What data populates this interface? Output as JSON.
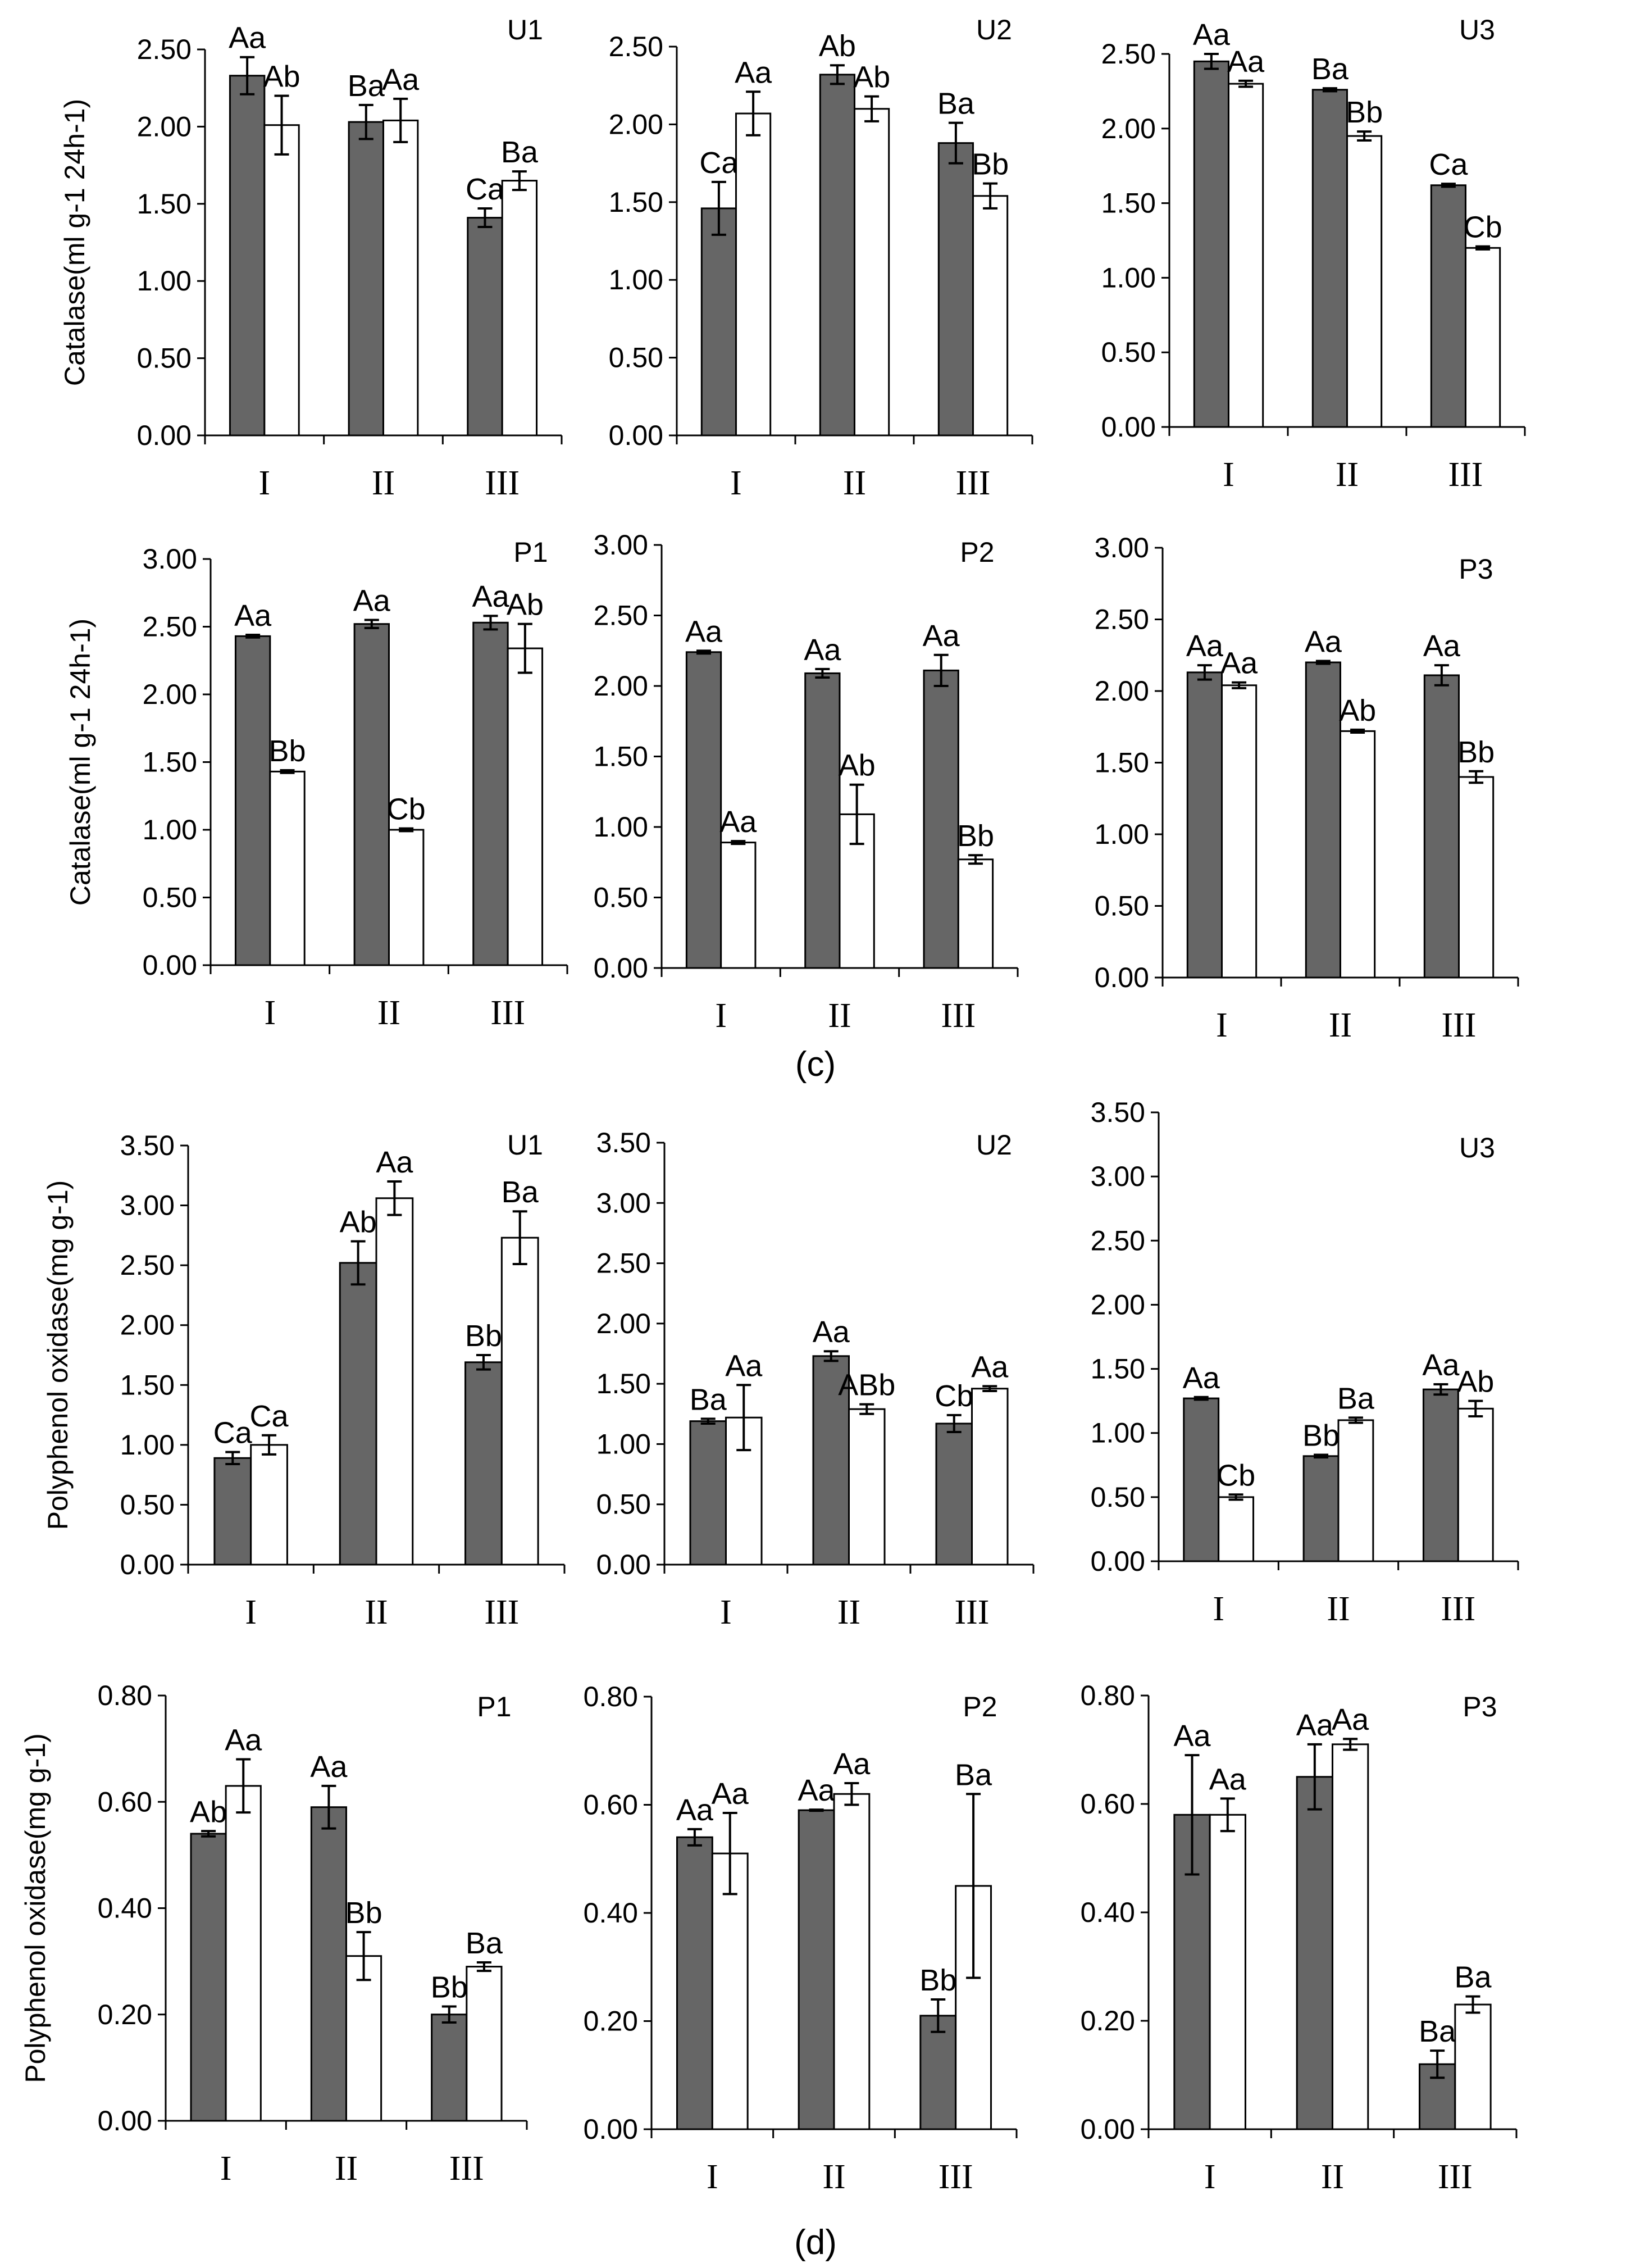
{
  "colors": {
    "treatment": "#666666",
    "control": "#ffffff",
    "axis": "#000000"
  },
  "section_labels": {
    "c": "(c)",
    "d": "(d)"
  },
  "chart_data": [
    {
      "id": "cat-u1",
      "type": "bar",
      "group": "c",
      "title": "U1",
      "ylabel": "Catalase(ml g-1 24h-1)",
      "ylim": [
        0,
        2.5
      ],
      "ystep": 0.5,
      "categories": [
        "I",
        "II",
        "III"
      ],
      "series": [
        {
          "name": "shaded",
          "values": [
            2.33,
            2.03,
            1.41
          ],
          "errors": [
            0.12,
            0.11,
            0.06
          ],
          "labels": [
            "Aa",
            "Ba",
            "Ca"
          ]
        },
        {
          "name": "open",
          "values": [
            2.01,
            2.04,
            1.65
          ],
          "errors": [
            0.19,
            0.14,
            0.06
          ],
          "labels": [
            "Ab",
            "Aa",
            "Ba"
          ]
        }
      ]
    },
    {
      "id": "cat-u2",
      "type": "bar",
      "group": "c",
      "title": "U2",
      "ylim": [
        0,
        2.5
      ],
      "ystep": 0.5,
      "categories": [
        "I",
        "II",
        "III"
      ],
      "series": [
        {
          "name": "shaded",
          "values": [
            1.46,
            2.32,
            1.88
          ],
          "errors": [
            0.17,
            0.06,
            0.13
          ],
          "labels": [
            "Ca",
            "Ab",
            "Ba"
          ]
        },
        {
          "name": "open",
          "values": [
            2.07,
            2.1,
            1.54
          ],
          "errors": [
            0.14,
            0.08,
            0.08
          ],
          "labels": [
            "Aa",
            "Ab",
            "Bb"
          ]
        }
      ]
    },
    {
      "id": "cat-u3",
      "type": "bar",
      "group": "c",
      "title": "U3",
      "ylim": [
        0,
        2.5
      ],
      "ystep": 0.5,
      "categories": [
        "I",
        "II",
        "III"
      ],
      "series": [
        {
          "name": "shaded",
          "values": [
            2.45,
            2.26,
            1.62
          ],
          "errors": [
            0.05,
            0.01,
            0.01
          ],
          "labels": [
            "Aa",
            "Ba",
            "Ca"
          ]
        },
        {
          "name": "open",
          "values": [
            2.3,
            1.95,
            1.2
          ],
          "errors": [
            0.02,
            0.03,
            0.01
          ],
          "labels": [
            "Aa",
            "Bb",
            "Cb"
          ]
        }
      ]
    },
    {
      "id": "cat-p1",
      "type": "bar",
      "group": "c",
      "title": "P1",
      "ylabel": "Catalase(ml g-1 24h-1)",
      "ylim": [
        0,
        3.0
      ],
      "ystep": 0.5,
      "categories": [
        "I",
        "II",
        "III"
      ],
      "series": [
        {
          "name": "shaded",
          "values": [
            2.43,
            2.52,
            2.53
          ],
          "errors": [
            0.01,
            0.03,
            0.05
          ],
          "labels": [
            "Aa",
            "Aa",
            "Aa"
          ]
        },
        {
          "name": "open",
          "values": [
            1.43,
            1.0,
            2.34
          ],
          "errors": [
            0.01,
            0.01,
            0.18
          ],
          "labels": [
            "Bb",
            "Cb",
            "Ab"
          ]
        }
      ]
    },
    {
      "id": "cat-p2",
      "type": "bar",
      "group": "c",
      "title": "P2",
      "ylim": [
        0,
        3.0
      ],
      "ystep": 0.5,
      "categories": [
        "I",
        "II",
        "III"
      ],
      "series": [
        {
          "name": "shaded",
          "values": [
            2.24,
            2.09,
            2.11
          ],
          "errors": [
            0.01,
            0.03,
            0.11
          ],
          "labels": [
            "Aa",
            "Aa",
            "Aa"
          ]
        },
        {
          "name": "open",
          "values": [
            0.89,
            1.09,
            0.77
          ],
          "errors": [
            0.01,
            0.21,
            0.03
          ],
          "labels": [
            "Aa",
            "Ab",
            "Bb"
          ]
        }
      ]
    },
    {
      "id": "cat-p3",
      "type": "bar",
      "group": "c",
      "title": "P3",
      "ylim": [
        0,
        3.0
      ],
      "ystep": 0.5,
      "categories": [
        "I",
        "II",
        "III"
      ],
      "series": [
        {
          "name": "shaded",
          "values": [
            2.13,
            2.2,
            2.11
          ],
          "errors": [
            0.05,
            0.01,
            0.07
          ],
          "labels": [
            "Aa",
            "Aa",
            "Aa"
          ]
        },
        {
          "name": "open",
          "values": [
            2.04,
            1.72,
            1.4
          ],
          "errors": [
            0.02,
            0.01,
            0.04
          ],
          "labels": [
            "Aa",
            "Ab",
            "Bb"
          ]
        }
      ]
    },
    {
      "id": "ppo-u1",
      "type": "bar",
      "group": "d",
      "title": "U1",
      "ylabel": "Polyphenol oxidase(mg g-1)",
      "ylim": [
        0,
        3.5
      ],
      "ystep": 0.5,
      "categories": [
        "I",
        "II",
        "III"
      ],
      "series": [
        {
          "name": "shaded",
          "values": [
            0.89,
            2.52,
            1.69
          ],
          "errors": [
            0.05,
            0.18,
            0.06
          ],
          "labels": [
            "Ca",
            "Ab",
            "Bb"
          ]
        },
        {
          "name": "open",
          "values": [
            1.0,
            3.06,
            2.73
          ],
          "errors": [
            0.08,
            0.14,
            0.22
          ],
          "labels": [
            "Ca",
            "Aa",
            "Ba"
          ]
        }
      ]
    },
    {
      "id": "ppo-u2",
      "type": "bar",
      "group": "d",
      "title": "U2",
      "ylim": [
        0,
        3.5
      ],
      "ystep": 0.5,
      "categories": [
        "I",
        "II",
        "III"
      ],
      "series": [
        {
          "name": "shaded",
          "values": [
            1.19,
            1.73,
            1.17
          ],
          "errors": [
            0.02,
            0.04,
            0.07
          ],
          "labels": [
            "Ba",
            "Aa",
            "Cb"
          ]
        },
        {
          "name": "open",
          "values": [
            1.22,
            1.29,
            1.46
          ],
          "errors": [
            0.27,
            0.04,
            0.02
          ],
          "labels": [
            "Aa",
            "ABb",
            "Aa"
          ]
        }
      ]
    },
    {
      "id": "ppo-u3",
      "type": "bar",
      "group": "d",
      "title": "U3",
      "ylim": [
        0,
        3.5
      ],
      "ystep": 0.5,
      "categories": [
        "I",
        "II",
        "III"
      ],
      "series": [
        {
          "name": "shaded",
          "values": [
            1.27,
            0.82,
            1.34
          ],
          "errors": [
            0.01,
            0.01,
            0.04
          ],
          "labels": [
            "Aa",
            "Bb",
            "Aa"
          ]
        },
        {
          "name": "open",
          "values": [
            0.5,
            1.1,
            1.19
          ],
          "errors": [
            0.02,
            0.02,
            0.06
          ],
          "labels": [
            "Cb",
            "Ba",
            "Ab"
          ]
        }
      ]
    },
    {
      "id": "ppo-p1",
      "type": "bar",
      "group": "d",
      "title": "P1",
      "ylabel": "Polyphenol oxidase(mg g-1)",
      "ylim": [
        0,
        0.8
      ],
      "ystep": 0.2,
      "categories": [
        "I",
        "II",
        "III"
      ],
      "series": [
        {
          "name": "shaded",
          "values": [
            0.54,
            0.59,
            0.2
          ],
          "errors": [
            0.005,
            0.04,
            0.015
          ],
          "labels": [
            "Ab",
            "Aa",
            "Bb"
          ]
        },
        {
          "name": "open",
          "values": [
            0.63,
            0.31,
            0.29
          ],
          "errors": [
            0.05,
            0.045,
            0.008
          ],
          "labels": [
            "Aa",
            "Bb",
            "Ba"
          ]
        }
      ]
    },
    {
      "id": "ppo-p2",
      "type": "bar",
      "group": "d",
      "title": "P2",
      "ylim": [
        0,
        0.8
      ],
      "ystep": 0.2,
      "categories": [
        "I",
        "II",
        "III"
      ],
      "series": [
        {
          "name": "shaded",
          "values": [
            0.54,
            0.59,
            0.21
          ],
          "errors": [
            0.015,
            0.001,
            0.03
          ],
          "labels": [
            "Aa",
            "Aa",
            "Bb"
          ]
        },
        {
          "name": "open",
          "values": [
            0.51,
            0.62,
            0.45
          ],
          "errors": [
            0.075,
            0.02,
            0.17
          ],
          "labels": [
            "Aa",
            "Aa",
            "Ba"
          ]
        }
      ]
    },
    {
      "id": "ppo-p3",
      "type": "bar",
      "group": "d",
      "title": "P3",
      "ylim": [
        0,
        0.8
      ],
      "ystep": 0.2,
      "categories": [
        "I",
        "II",
        "III"
      ],
      "series": [
        {
          "name": "shaded",
          "values": [
            0.58,
            0.65,
            0.12
          ],
          "errors": [
            0.11,
            0.06,
            0.025
          ],
          "labels": [
            "Aa",
            "Aa",
            "Ba"
          ]
        },
        {
          "name": "open",
          "values": [
            0.58,
            0.71,
            0.23
          ],
          "errors": [
            0.03,
            0.01,
            0.015
          ],
          "labels": [
            "Aa",
            "Aa",
            "Ba"
          ]
        }
      ]
    }
  ]
}
